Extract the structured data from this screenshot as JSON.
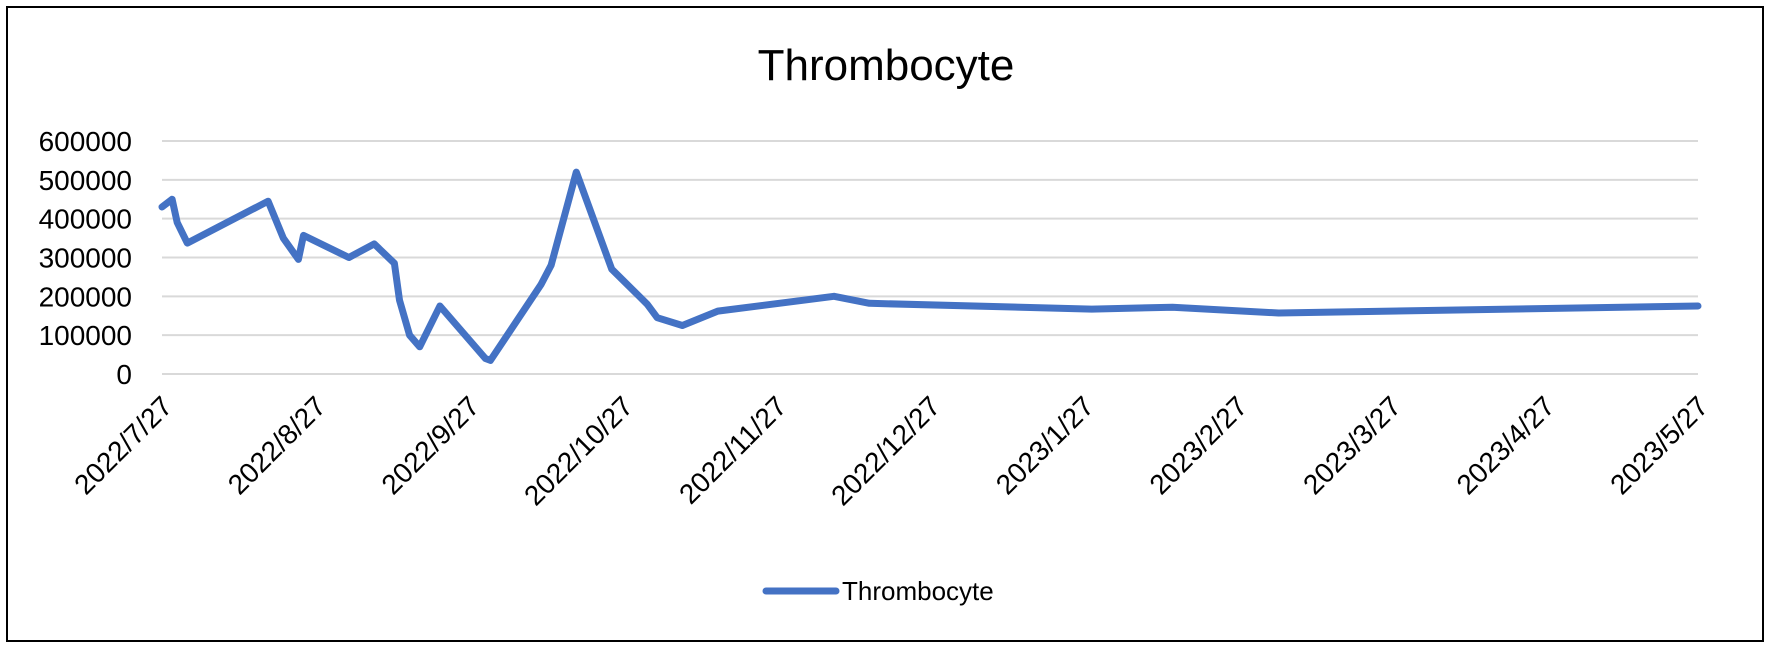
{
  "chart_data": {
    "type": "line",
    "title": "Thrombocyte",
    "xlabel": "",
    "ylabel": "",
    "x_ticks": [
      "2022/7/27",
      "2022/8/27",
      "2022/9/27",
      "2022/10/27",
      "2022/11/27",
      "2022/12/27",
      "2023/1/27",
      "2023/2/27",
      "2023/3/27",
      "2023/4/27",
      "2023/5/27"
    ],
    "y_ticks": [
      0,
      100000,
      200000,
      300000,
      400000,
      500000,
      600000
    ],
    "ylim": [
      0,
      600000
    ],
    "xlim": [
      "2022-07-27",
      "2023-05-27"
    ],
    "grid": true,
    "legend_position": "bottom",
    "series": [
      {
        "name": "Thrombocyte",
        "color": "#4472C4",
        "points": [
          [
            "2022-07-27",
            430000
          ],
          [
            "2022-07-29",
            450000
          ],
          [
            "2022-07-30",
            390000
          ],
          [
            "2022-08-01",
            337000
          ],
          [
            "2022-08-17",
            445000
          ],
          [
            "2022-08-20",
            350000
          ],
          [
            "2022-08-23",
            295000
          ],
          [
            "2022-08-24",
            357000
          ],
          [
            "2022-09-02",
            300000
          ],
          [
            "2022-09-07",
            335000
          ],
          [
            "2022-09-11",
            285000
          ],
          [
            "2022-09-12",
            190000
          ],
          [
            "2022-09-14",
            100000
          ],
          [
            "2022-09-16",
            70000
          ],
          [
            "2022-09-20",
            175000
          ],
          [
            "2022-09-29",
            40000
          ],
          [
            "2022-09-30",
            35000
          ],
          [
            "2022-10-10",
            230000
          ],
          [
            "2022-10-12",
            280000
          ],
          [
            "2022-10-17",
            520000
          ],
          [
            "2022-10-24",
            270000
          ],
          [
            "2022-10-31",
            180000
          ],
          [
            "2022-11-02",
            145000
          ],
          [
            "2022-11-07",
            125000
          ],
          [
            "2022-11-14",
            162000
          ],
          [
            "2022-12-07",
            200000
          ],
          [
            "2022-12-14",
            182000
          ],
          [
            "2023-01-27",
            167000
          ],
          [
            "2023-02-12",
            172000
          ],
          [
            "2023-03-05",
            157000
          ],
          [
            "2023-05-27",
            175000
          ]
        ]
      }
    ]
  }
}
